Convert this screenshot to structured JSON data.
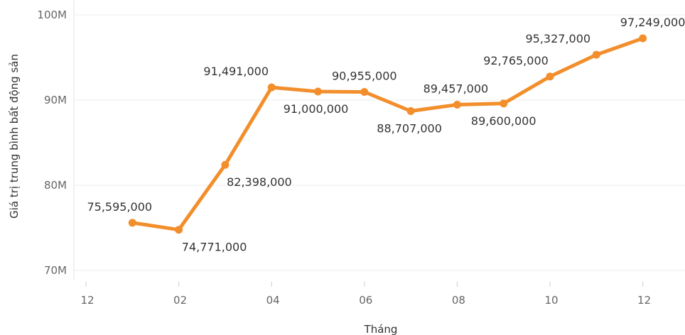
{
  "chart_data": {
    "type": "line",
    "xlabel": "Tháng",
    "ylabel": "Giá trị trung bình bất động sản",
    "x_ticks": [
      "12",
      "02",
      "04",
      "06",
      "08",
      "10",
      "12"
    ],
    "y_ticks": [
      "70M",
      "80M",
      "90M",
      "100M"
    ],
    "ylim": [
      69000000,
      102000000
    ],
    "grid": true,
    "series": [
      {
        "color": "#F28E2B",
        "points": [
          {
            "month": 1,
            "value": 75595000,
            "label": "75,595,000"
          },
          {
            "month": 2,
            "value": 74771000,
            "label": "74,771,000"
          },
          {
            "month": 3,
            "value": 82398000,
            "label": "82,398,000"
          },
          {
            "month": 4,
            "value": 91491000,
            "label": "91,491,000"
          },
          {
            "month": 5,
            "value": 91000000,
            "label": "91,000,000"
          },
          {
            "month": 6,
            "value": 90955000,
            "label": "90,955,000"
          },
          {
            "month": 7,
            "value": 88707000,
            "label": "88,707,000"
          },
          {
            "month": 8,
            "value": 89457000,
            "label": "89,457,000"
          },
          {
            "month": 9,
            "value": 89600000,
            "label": "89,600,000"
          },
          {
            "month": 10,
            "value": 92765000,
            "label": "92,765,000"
          },
          {
            "month": 11,
            "value": 95327000,
            "label": "95,327,000"
          },
          {
            "month": 12,
            "value": 97249000,
            "label": "97,249,000"
          }
        ]
      }
    ]
  }
}
